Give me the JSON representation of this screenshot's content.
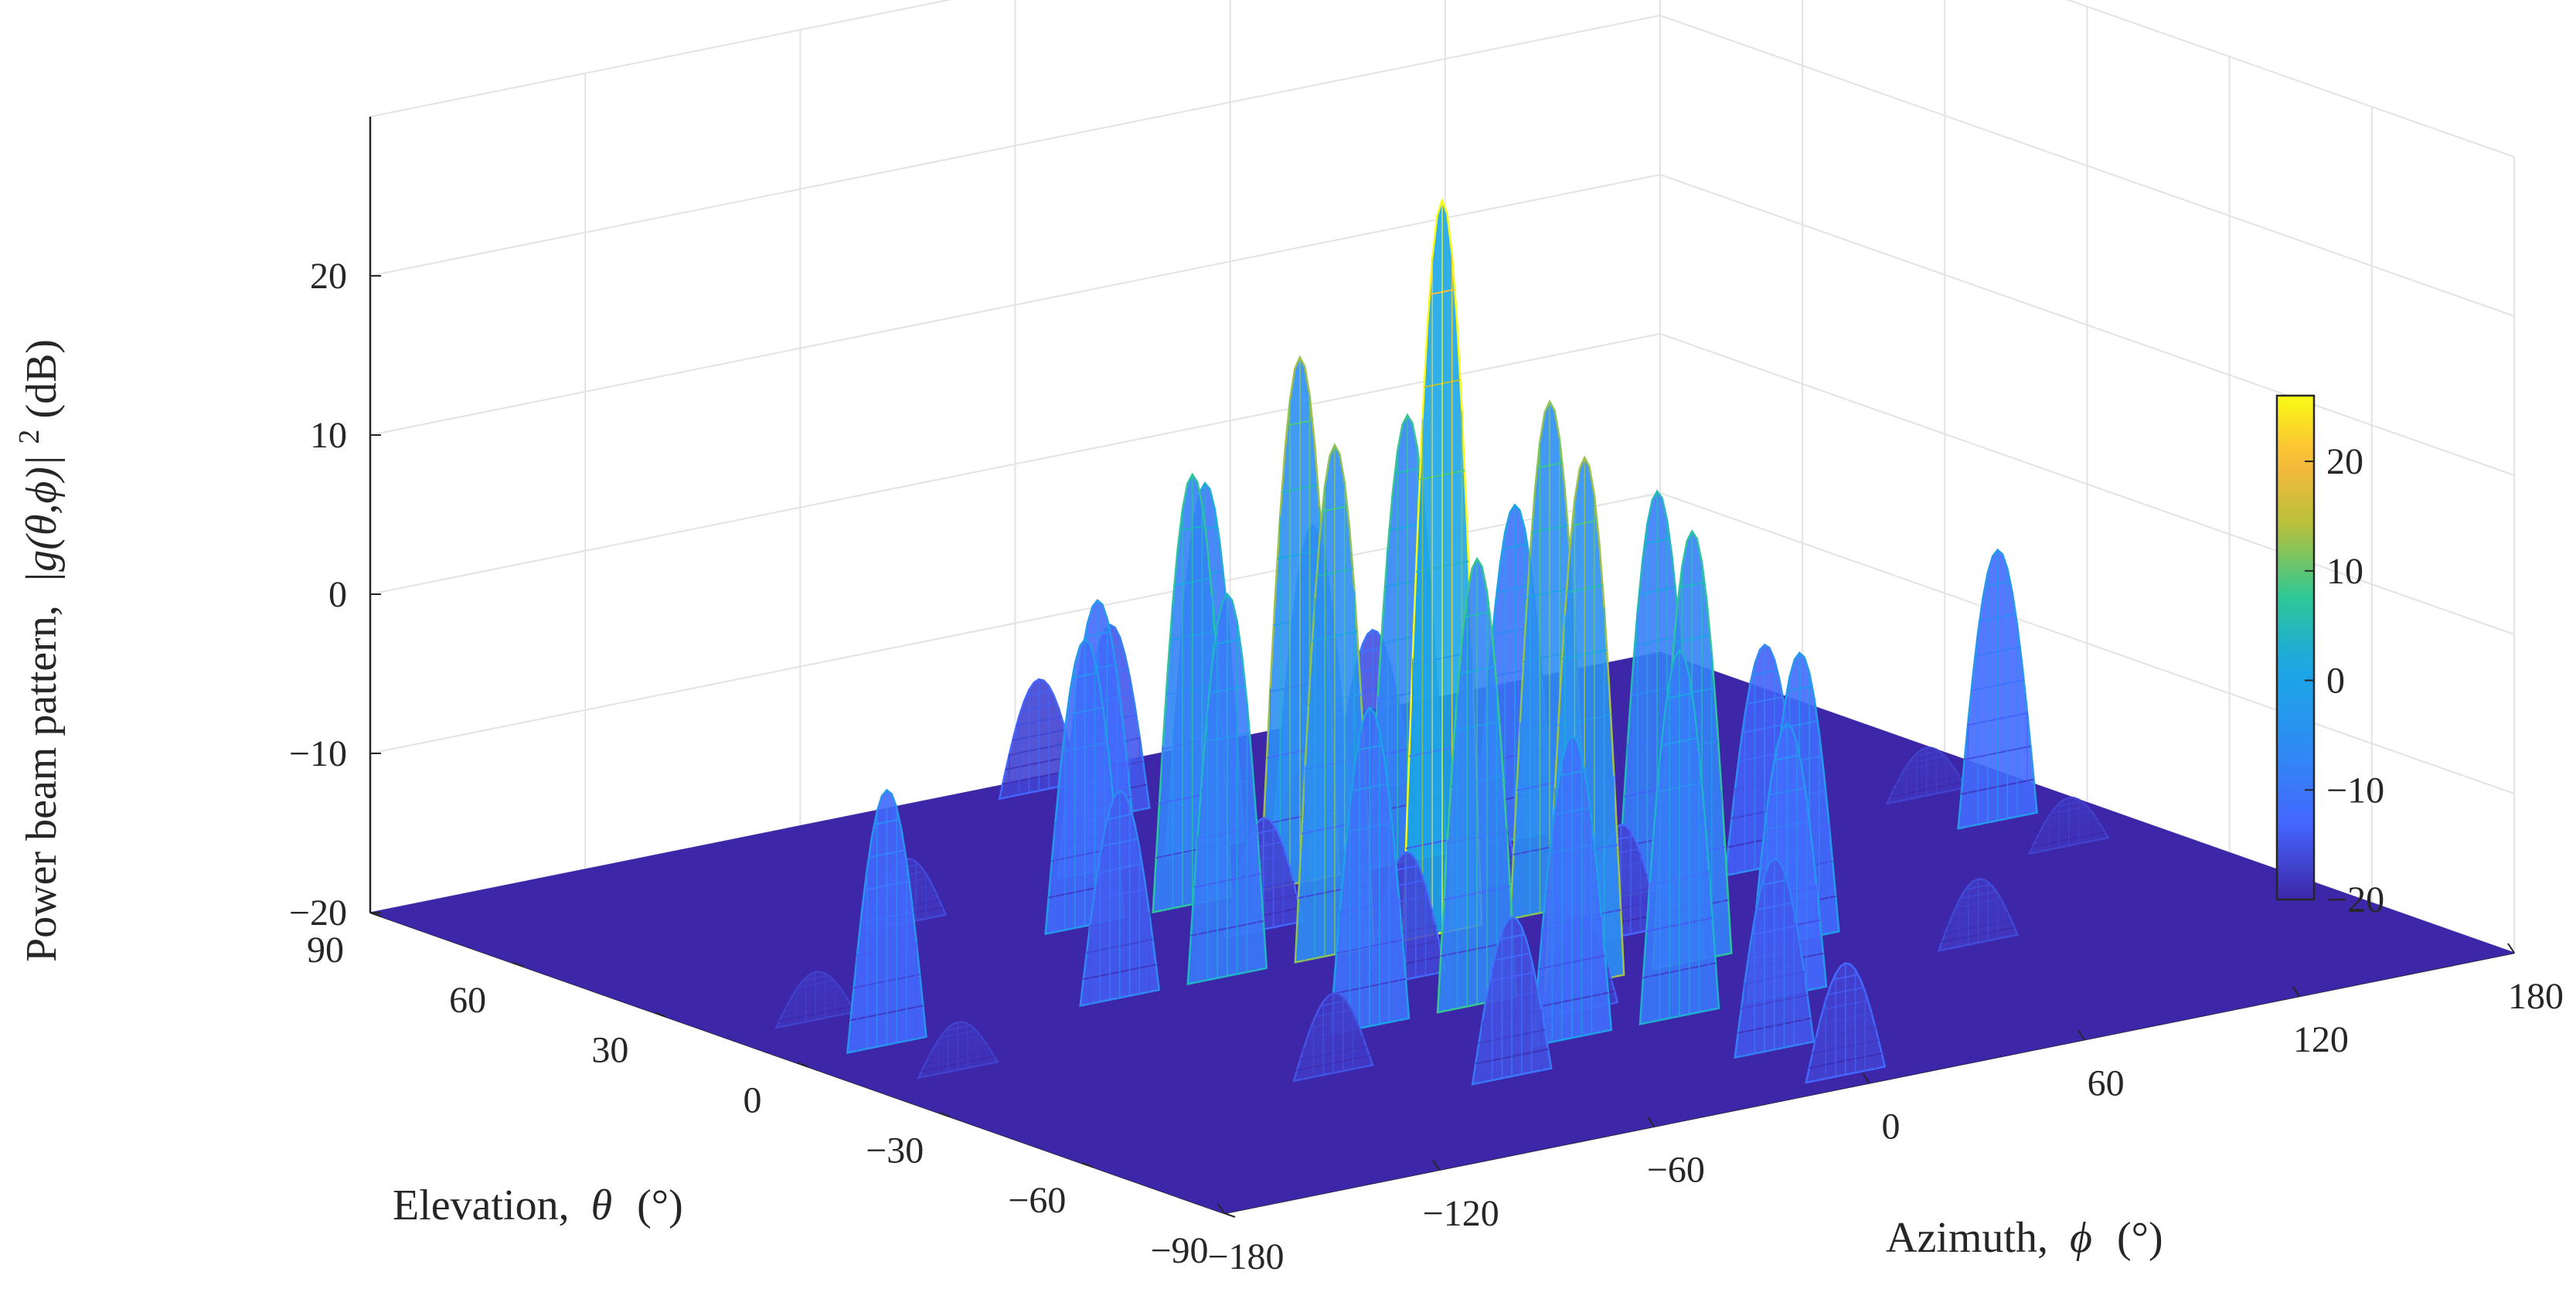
{
  "chart_data": {
    "type": "surface",
    "zlabel": {
      "main": "Power beam pattern,",
      "math": "|g(θ,ϕ)|",
      "exp": "2",
      "unit": " (dB)"
    },
    "xlabel": {
      "main": "Elevation,",
      "math": "θ",
      "unit": "(°)"
    },
    "ylabel": {
      "main": "Azimuth,",
      "math": "ϕ",
      "unit": "(°)"
    },
    "elevation_ticks": [
      "90",
      "60",
      "30",
      "0",
      "−30",
      "−60",
      "−90"
    ],
    "elevation_values": [
      90,
      60,
      30,
      0,
      -30,
      -60,
      -90
    ],
    "azimuth_ticks": [
      "−180",
      "−120",
      "−60",
      "0",
      "60",
      "120",
      "180"
    ],
    "azimuth_values": [
      -180,
      -120,
      -60,
      0,
      60,
      120,
      180
    ],
    "z_ticks": [
      "−20",
      "−10",
      "0",
      "10",
      "20"
    ],
    "z_values": [
      -20,
      -10,
      0,
      10,
      20
    ],
    "elevation_range": [
      -90,
      90
    ],
    "azimuth_range": [
      -180,
      180
    ],
    "zlim": [
      -20,
      30
    ],
    "floor_db": -20,
    "grid": true,
    "colorbar": {
      "range": [
        -20,
        26
      ],
      "ticks": [
        "−20",
        "−10",
        "0",
        "10",
        "20"
      ],
      "tick_values": [
        -20,
        -10,
        0,
        10,
        20
      ],
      "colormap": "parula",
      "colors": [
        "#3e26a8",
        "#4466fd",
        "#1aa8e3",
        "#2ec896",
        "#b6c13a",
        "#fcb83c",
        "#f9fb15"
      ]
    },
    "surface_color_floor": "#3e26a8",
    "lobes": [
      {
        "elevation": 0,
        "azimuth": 0,
        "peak_db": 26
      },
      {
        "elevation": 30,
        "azimuth": 0,
        "peak_db": 13
      },
      {
        "elevation": -30,
        "azimuth": 0,
        "peak_db": 13
      },
      {
        "elevation": 0,
        "azimuth": 30,
        "peak_db": 12
      },
      {
        "elevation": 0,
        "azimuth": -30,
        "peak_db": 12
      },
      {
        "elevation": 30,
        "azimuth": 30,
        "peak_db": 8
      },
      {
        "elevation": -30,
        "azimuth": -30,
        "peak_db": 8
      },
      {
        "elevation": 30,
        "azimuth": -30,
        "peak_db": 7
      },
      {
        "elevation": -30,
        "azimuth": 30,
        "peak_db": 7
      },
      {
        "elevation": 0,
        "azimuth": 60,
        "peak_db": 5
      },
      {
        "elevation": 0,
        "azimuth": -60,
        "peak_db": 4
      },
      {
        "elevation": 50,
        "azimuth": 0,
        "peak_db": 3
      },
      {
        "elevation": -50,
        "azimuth": 0,
        "peak_db": 3
      },
      {
        "elevation": 30,
        "azimuth": 60,
        "peak_db": 1
      },
      {
        "elevation": -30,
        "azimuth": -60,
        "peak_db": 0
      },
      {
        "elevation": 30,
        "azimuth": -60,
        "peak_db": -2
      },
      {
        "elevation": -30,
        "azimuth": 60,
        "peak_db": -2
      },
      {
        "elevation": 50,
        "azimuth": 30,
        "peak_db": -1
      },
      {
        "elevation": 50,
        "azimuth": -30,
        "peak_db": -3
      },
      {
        "elevation": -50,
        "azimuth": 30,
        "peak_db": -3
      },
      {
        "elevation": -50,
        "azimuth": -30,
        "peak_db": -1
      },
      {
        "elevation": 70,
        "azimuth": 0,
        "peak_db": -8
      },
      {
        "elevation": -70,
        "azimuth": 0,
        "peak_db": -8
      },
      {
        "elevation": 0,
        "azimuth": 90,
        "peak_db": -6
      },
      {
        "elevation": 0,
        "azimuth": -90,
        "peak_db": -7
      },
      {
        "elevation": 60,
        "azimuth": 60,
        "peak_db": -10
      },
      {
        "elevation": -60,
        "azimuth": -60,
        "peak_db": -10
      },
      {
        "elevation": 85,
        "azimuth": 0,
        "peak_db": -13
      },
      {
        "elevation": -85,
        "azimuth": 0,
        "peak_db": -13
      },
      {
        "elevation": 0,
        "azimuth": 155,
        "peak_db": -3
      },
      {
        "elevation": 0,
        "azimuth": -155,
        "peak_db": -4
      },
      {
        "elevation": 15,
        "azimuth": 155,
        "peak_db": -17
      },
      {
        "elevation": -15,
        "azimuth": 155,
        "peak_db": -17
      },
      {
        "elevation": 15,
        "azimuth": -155,
        "peak_db": -17
      },
      {
        "elevation": -15,
        "azimuth": -155,
        "peak_db": -17
      },
      {
        "elevation": 45,
        "azimuth": 90,
        "peak_db": -15
      },
      {
        "elevation": -45,
        "azimuth": -90,
        "peak_db": -15
      },
      {
        "elevation": 45,
        "azimuth": -90,
        "peak_db": -16
      },
      {
        "elevation": -45,
        "azimuth": 90,
        "peak_db": -16
      },
      {
        "elevation": 15,
        "azimuth": 30,
        "peak_db": -12
      },
      {
        "elevation": -15,
        "azimuth": -30,
        "peak_db": -12
      },
      {
        "elevation": 15,
        "azimuth": -30,
        "peak_db": -13
      },
      {
        "elevation": -15,
        "azimuth": 30,
        "peak_db": -13
      },
      {
        "elevation": 40,
        "azimuth": 15,
        "peak_db": -14
      },
      {
        "elevation": -40,
        "azimuth": -15,
        "peak_db": -14
      }
    ]
  }
}
